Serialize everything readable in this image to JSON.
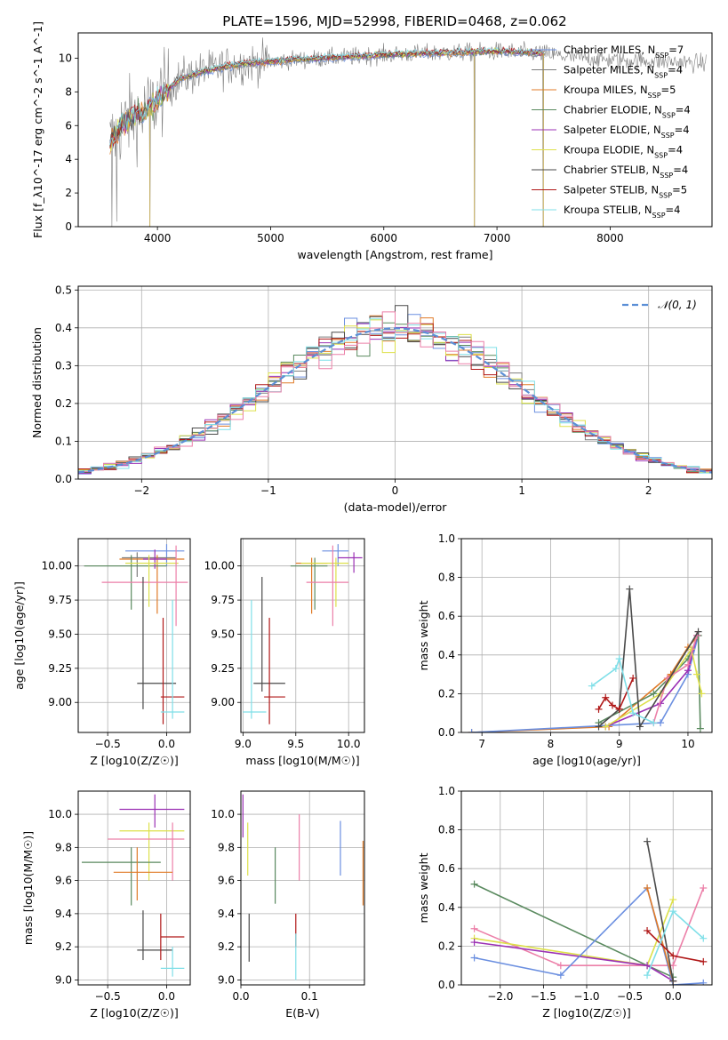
{
  "figure_title": "PLATE=1596, MJD=52998, FIBERID=0468, z=0.062",
  "colors": {
    "Chabrier MILES": "#6b8fe0",
    "Salpeter MILES": "#7f7f7f",
    "Kroupa MILES": "#e07b28",
    "Chabrier ELODIE": "#5a8a5f",
    "Salpeter ELODIE": "#9b30b4",
    "Kroupa ELODIE": "#dde04a",
    "Chabrier STELIB": "#4a4a4a",
    "Salpeter STELIB": "#b01818",
    "Kroupa STELIB": "#7fdfe8",
    "pink": "#ec7fa8",
    "grid": "#b0b0b0"
  },
  "chart_data": [
    {
      "id": "spectrum",
      "type": "line",
      "xlabel": "wavelength [Angstrom, rest frame]",
      "ylabel": "Flux [f_λ10^-17 erg cm^-2 s^-1 A^-1]",
      "xlim": [
        3300,
        8900
      ],
      "ylim": [
        0,
        11.5
      ],
      "xticks": [
        4000,
        5000,
        6000,
        7000,
        8000
      ],
      "yticks": [
        0,
        2,
        4,
        6,
        8,
        10
      ],
      "grid": false,
      "legend_position": "top-right",
      "legend": [
        {
          "name": "Chabrier MILES",
          "nssp": "7"
        },
        {
          "name": "Salpeter MILES",
          "nssp": "4"
        },
        {
          "name": "Kroupa MILES",
          "nssp": "5"
        },
        {
          "name": "Chabrier ELODIE",
          "nssp": "4"
        },
        {
          "name": "Salpeter ELODIE",
          "nssp": "4"
        },
        {
          "name": "Kroupa ELODIE",
          "nssp": "4"
        },
        {
          "name": "Chabrier STELIB",
          "nssp": "4"
        },
        {
          "name": "Salpeter STELIB",
          "nssp": "5"
        },
        {
          "name": "Kroupa STELIB",
          "nssp": "4"
        }
      ],
      "continuum": [
        [
          3580,
          5.0
        ],
        [
          3700,
          6.2
        ],
        [
          3800,
          6.6
        ],
        [
          3900,
          6.8
        ],
        [
          4000,
          7.6
        ],
        [
          4200,
          8.8
        ],
        [
          4400,
          9.2
        ],
        [
          4600,
          9.5
        ],
        [
          4800,
          9.7
        ],
        [
          5000,
          9.8
        ],
        [
          5200,
          9.9
        ],
        [
          5500,
          10.0
        ],
        [
          6000,
          10.2
        ],
        [
          6500,
          10.3
        ],
        [
          7000,
          10.4
        ],
        [
          7400,
          10.3
        ],
        [
          7600,
          10.1
        ],
        [
          8000,
          9.9
        ],
        [
          8500,
          9.8
        ],
        [
          8800,
          9.7
        ]
      ],
      "model_end": 7420,
      "absorption_features": [
        {
          "x": 3933,
          "y": 0
        },
        {
          "x": 6800,
          "y": 0
        },
        {
          "x": 7410,
          "y": 0
        },
        {
          "x": 3600,
          "y": 0
        },
        {
          "x": 3640,
          "y": 0.3
        }
      ]
    },
    {
      "id": "residuals",
      "type": "histogram",
      "xlabel": "(data-model)/error",
      "ylabel": "Normed distribution",
      "xlim": [
        -2.5,
        2.5
      ],
      "ylim": [
        0,
        0.51
      ],
      "xticks": [
        -2,
        -1,
        0,
        1,
        2
      ],
      "yticks": [
        0,
        0.1,
        0.2,
        0.3,
        0.4,
        0.5
      ],
      "grid": true,
      "bin_width": 0.1,
      "legend_position": "top-right",
      "legend": [
        {
          "name": "𝒩(0, 1)"
        }
      ]
    },
    {
      "id": "age_vs_Z",
      "type": "errorbar",
      "xlabel": "Z [log10(Z/Z☉)]",
      "ylabel": "age [log10(age/yr)]",
      "xlim": [
        -0.75,
        0.2
      ],
      "ylim": [
        8.78,
        10.2
      ],
      "xticks": [
        -0.5,
        0.0
      ],
      "yticks": [
        9.0,
        9.25,
        9.5,
        9.75,
        10.0
      ],
      "grid": true,
      "points": [
        {
          "series": "Chabrier MILES",
          "x": 0.0,
          "xlo": -0.35,
          "xhi": 0.15,
          "y": 10.11,
          "ylo": 10.0,
          "yhi": 10.16
        },
        {
          "series": "Salpeter MILES",
          "x": -0.25,
          "xlo": -0.38,
          "xhi": 0.08,
          "y": 10.06,
          "ylo": 9.92,
          "yhi": 10.1
        },
        {
          "series": "Kroupa MILES",
          "x": -0.08,
          "xlo": -0.4,
          "xhi": 0.15,
          "y": 10.05,
          "ylo": 9.65,
          "yhi": 10.08
        },
        {
          "series": "Chabrier ELODIE",
          "x": -0.3,
          "xlo": -0.7,
          "xhi": 0.0,
          "y": 10.0,
          "ylo": 9.68,
          "yhi": 10.08
        },
        {
          "series": "Salpeter ELODIE",
          "x": -0.1,
          "xlo": -0.2,
          "xhi": 0.0,
          "y": 10.05,
          "ylo": 9.98,
          "yhi": 10.12
        },
        {
          "series": "Kroupa ELODIE",
          "x": -0.15,
          "xlo": -0.35,
          "xhi": 0.1,
          "y": 10.02,
          "ylo": 9.7,
          "yhi": 10.08
        },
        {
          "series": "pink",
          "x": 0.08,
          "xlo": -0.55,
          "xhi": 0.18,
          "y": 9.88,
          "ylo": 9.56,
          "yhi": 10.15
        },
        {
          "series": "Chabrier STELIB",
          "x": -0.2,
          "xlo": -0.25,
          "xhi": 0.08,
          "y": 9.14,
          "ylo": 8.95,
          "yhi": 9.92
        },
        {
          "series": "Salpeter STELIB",
          "x": -0.03,
          "xlo": -0.05,
          "xhi": 0.15,
          "y": 9.04,
          "ylo": 8.84,
          "yhi": 9.62
        },
        {
          "series": "Kroupa STELIB",
          "x": 0.05,
          "xlo": -0.05,
          "xhi": 0.15,
          "y": 8.93,
          "ylo": 8.88,
          "yhi": 9.75
        }
      ]
    },
    {
      "id": "age_vs_mass",
      "type": "errorbar",
      "xlabel": "mass [log10(M/M☉)]",
      "ylabel": "",
      "xlim": [
        8.98,
        10.15
      ],
      "ylim": [
        8.78,
        10.2
      ],
      "xticks": [
        9.0,
        9.5,
        10.0
      ],
      "yticks": [
        9.0,
        9.25,
        9.5,
        9.75,
        10.0
      ],
      "grid": true,
      "points": [
        {
          "series": "Chabrier MILES",
          "x": 9.9,
          "xlo": 9.75,
          "xhi": 10.0,
          "y": 10.11,
          "ylo": 10.0,
          "yhi": 10.16
        },
        {
          "series": "Salpeter ELODIE",
          "x": 10.05,
          "xlo": 9.9,
          "xhi": 10.13,
          "y": 10.06,
          "ylo": 9.95,
          "yhi": 10.1
        },
        {
          "series": "Kroupa MILES",
          "x": 9.65,
          "xlo": 9.5,
          "xhi": 9.8,
          "y": 10.02,
          "ylo": 9.65,
          "yhi": 10.06
        },
        {
          "series": "Chabrier ELODIE",
          "x": 9.68,
          "xlo": 9.45,
          "xhi": 9.8,
          "y": 10.0,
          "ylo": 9.68,
          "yhi": 10.06
        },
        {
          "series": "Kroupa ELODIE",
          "x": 9.88,
          "xlo": 9.55,
          "xhi": 10.0,
          "y": 10.02,
          "ylo": 9.7,
          "yhi": 10.06
        },
        {
          "series": "pink",
          "x": 9.85,
          "xlo": 9.6,
          "xhi": 10.0,
          "y": 9.88,
          "ylo": 9.56,
          "yhi": 10.15
        },
        {
          "series": "Chabrier STELIB",
          "x": 9.18,
          "xlo": 9.1,
          "xhi": 9.4,
          "y": 9.14,
          "ylo": 9.08,
          "yhi": 9.92
        },
        {
          "series": "Salpeter STELIB",
          "x": 9.25,
          "xlo": 9.2,
          "xhi": 9.4,
          "y": 9.04,
          "ylo": 8.84,
          "yhi": 9.62
        },
        {
          "series": "Kroupa STELIB",
          "x": 9.08,
          "xlo": 9.0,
          "xhi": 9.22,
          "y": 8.93,
          "ylo": 8.88,
          "yhi": 9.75
        }
      ]
    },
    {
      "id": "weight_vs_age",
      "type": "line",
      "xlabel": "age [log10(age/yr)]",
      "ylabel": "mass weight",
      "xlim": [
        6.7,
        10.35
      ],
      "ylim": [
        0,
        1.0
      ],
      "xticks": [
        7,
        8,
        9,
        10
      ],
      "yticks": [
        0.0,
        0.2,
        0.4,
        0.6,
        0.8,
        1.0
      ],
      "grid": true,
      "series": [
        {
          "name": "Kroupa MILES",
          "x": [
            6.85,
            8.85,
            9.75,
            10.0,
            10.15
          ],
          "y": [
            0.0,
            0.03,
            0.3,
            0.44,
            0.5
          ]
        },
        {
          "name": "Chabrier MILES",
          "x": [
            6.85,
            9.6,
            10.0,
            10.15
          ],
          "y": [
            0.0,
            0.05,
            0.3,
            0.5
          ]
        },
        {
          "name": "Chabrier ELODIE",
          "x": [
            8.7,
            9.5,
            10.0,
            10.15,
            10.18
          ],
          "y": [
            0.05,
            0.2,
            0.38,
            0.5,
            0.02
          ]
        },
        {
          "name": "Salpeter ELODIE",
          "x": [
            8.8,
            9.6,
            10.0,
            10.13
          ],
          "y": [
            0.03,
            0.15,
            0.32,
            0.5
          ]
        },
        {
          "name": "Kroupa ELODIE",
          "x": [
            8.8,
            9.6,
            10.05,
            10.13,
            10.2
          ],
          "y": [
            0.03,
            0.2,
            0.43,
            0.3,
            0.2
          ]
        },
        {
          "name": "pink",
          "x": [
            9.5,
            9.7,
            10.0,
            10.13
          ],
          "y": [
            0.05,
            0.28,
            0.35,
            0.5
          ]
        },
        {
          "name": "Chabrier STELIB",
          "x": [
            8.7,
            9.0,
            9.15,
            9.3,
            10.15
          ],
          "y": [
            0.03,
            0.12,
            0.74,
            0.03,
            0.52
          ]
        },
        {
          "name": "Salpeter STELIB",
          "x": [
            8.7,
            8.8,
            8.9,
            9.0,
            9.2
          ],
          "y": [
            0.12,
            0.18,
            0.14,
            0.12,
            0.28
          ]
        },
        {
          "name": "Kroupa STELIB",
          "x": [
            8.6,
            8.95,
            9.0,
            9.2,
            9.5
          ],
          "y": [
            0.24,
            0.33,
            0.38,
            0.1,
            0.05
          ]
        }
      ]
    },
    {
      "id": "mass_vs_Z",
      "type": "errorbar",
      "xlabel": "Z [log10(Z/Z☉)]",
      "ylabel": "mass [log10(M/M☉)]",
      "xlim": [
        -0.75,
        0.2
      ],
      "ylim": [
        8.97,
        10.14
      ],
      "xticks": [
        -0.5,
        0.0
      ],
      "yticks": [
        9.0,
        9.2,
        9.4,
        9.6,
        9.8,
        10.0
      ],
      "grid": true,
      "points": [
        {
          "series": "Salpeter ELODIE",
          "x": -0.1,
          "xlo": -0.4,
          "xhi": 0.15,
          "y": 10.03,
          "ylo": 9.92,
          "yhi": 10.12
        },
        {
          "series": "Kroupa ELODIE",
          "x": -0.15,
          "xlo": -0.4,
          "xhi": 0.15,
          "y": 9.9,
          "ylo": 9.6,
          "yhi": 9.95
        },
        {
          "series": "pink",
          "x": 0.05,
          "xlo": -0.5,
          "xhi": 0.15,
          "y": 9.85,
          "ylo": 9.6,
          "yhi": 9.95
        },
        {
          "series": "Chabrier ELODIE",
          "x": -0.3,
          "xlo": -0.72,
          "xhi": -0.05,
          "y": 9.71,
          "ylo": 9.45,
          "yhi": 9.8
        },
        {
          "series": "Kroupa MILES",
          "x": -0.25,
          "xlo": -0.45,
          "xhi": 0.05,
          "y": 9.65,
          "ylo": 9.48,
          "yhi": 9.8
        },
        {
          "series": "Chabrier STELIB",
          "x": -0.2,
          "xlo": -0.25,
          "xhi": 0.05,
          "y": 9.18,
          "ylo": 9.12,
          "yhi": 9.42
        },
        {
          "series": "Salpeter STELIB",
          "x": -0.05,
          "xlo": -0.05,
          "xhi": 0.15,
          "y": 9.26,
          "ylo": 9.12,
          "yhi": 9.4
        },
        {
          "series": "Kroupa STELIB",
          "x": 0.05,
          "xlo": -0.05,
          "xhi": 0.15,
          "y": 9.07,
          "ylo": 9.02,
          "yhi": 9.2
        }
      ]
    },
    {
      "id": "ebv",
      "type": "errorbar",
      "xlabel": "E(B-V)",
      "ylabel": "",
      "xlim": [
        0.0,
        0.18
      ],
      "ylim": [
        8.97,
        10.14
      ],
      "xticks": [
        0.0,
        0.1
      ],
      "yticks": [
        9.0,
        9.2,
        9.4,
        9.6,
        9.8,
        10.0
      ],
      "grid": true,
      "points": [
        {
          "series": "Salpeter ELODIE",
          "x": 0.003,
          "y": 10.0,
          "ylo": 9.86,
          "yhi": 10.12
        },
        {
          "series": "Kroupa ELODIE",
          "x": 0.01,
          "y": 9.8,
          "ylo": 9.63,
          "yhi": 9.95
        },
        {
          "series": "Chabrier STELIB",
          "x": 0.012,
          "y": 9.25,
          "ylo": 9.11,
          "yhi": 9.4
        },
        {
          "series": "Chabrier ELODIE",
          "x": 0.05,
          "y": 9.63,
          "ylo": 9.46,
          "yhi": 9.8
        },
        {
          "series": "pink",
          "x": 0.085,
          "y": 9.8,
          "ylo": 9.6,
          "yhi": 10.0
        },
        {
          "series": "Salpeter STELIB",
          "x": 0.08,
          "y": 9.35,
          "ylo": 9.2,
          "yhi": 9.4
        },
        {
          "series": "Kroupa STELIB",
          "x": 0.08,
          "y": 9.18,
          "ylo": 9.0,
          "yhi": 9.28
        },
        {
          "series": "Chabrier MILES",
          "x": 0.145,
          "y": 9.8,
          "ylo": 9.63,
          "yhi": 9.96
        },
        {
          "series": "Kroupa MILES",
          "x": 0.178,
          "y": 9.65,
          "ylo": 9.45,
          "yhi": 9.84
        }
      ]
    },
    {
      "id": "weight_vs_Z",
      "type": "line",
      "xlabel": "Z [log10(Z/Z☉)]",
      "ylabel": "mass weight",
      "xlim": [
        -2.45,
        0.45
      ],
      "ylim": [
        0,
        1.0
      ],
      "xticks": [
        -2.0,
        -1.5,
        -1.0,
        -0.5,
        0.0
      ],
      "yticks": [
        0.0,
        0.2,
        0.4,
        0.6,
        0.8,
        1.0
      ],
      "grid": true,
      "series": [
        {
          "name": "Chabrier ELODIE",
          "x": [
            -2.3,
            -0.3,
            0.0
          ],
          "y": [
            0.52,
            0.1,
            0.04
          ]
        },
        {
          "name": "pink",
          "x": [
            -2.3,
            -1.3,
            0.0,
            0.35
          ],
          "y": [
            0.29,
            0.1,
            0.1,
            0.5
          ]
        },
        {
          "name": "Kroupa ELODIE",
          "x": [
            -2.3,
            -0.3,
            0.0
          ],
          "y": [
            0.24,
            0.1,
            0.44
          ]
        },
        {
          "name": "Salpeter ELODIE",
          "x": [
            -2.3,
            -0.3,
            0.0
          ],
          "y": [
            0.22,
            0.1,
            0.02
          ]
        },
        {
          "name": "Chabrier MILES",
          "x": [
            -2.3,
            -1.3,
            -0.3,
            0.0,
            0.35
          ],
          "y": [
            0.14,
            0.05,
            0.5,
            0.0,
            0.01
          ]
        },
        {
          "name": "Kroupa MILES",
          "x": [
            -0.3,
            0.0
          ],
          "y": [
            0.5,
            0.02
          ]
        },
        {
          "name": "Chabrier STELIB",
          "x": [
            -0.3,
            0.0
          ],
          "y": [
            0.74,
            0.02
          ]
        },
        {
          "name": "Salpeter STELIB",
          "x": [
            -0.3,
            0.0,
            0.35
          ],
          "y": [
            0.28,
            0.15,
            0.12
          ]
        },
        {
          "name": "Kroupa STELIB",
          "x": [
            -0.3,
            0.0,
            0.35
          ],
          "y": [
            0.05,
            0.38,
            0.24
          ]
        }
      ]
    }
  ]
}
